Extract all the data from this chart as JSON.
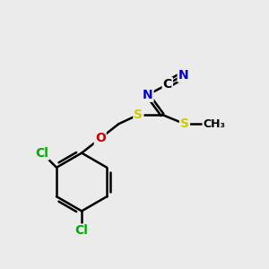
{
  "background_color": "#ebebeb",
  "atom_colors": {
    "S": "#cccc00",
    "N": "#0000cc",
    "O": "#cc0000",
    "Cl": "#00aa00",
    "C": "#000000"
  },
  "bond_lw": 1.8,
  "font_size": 10,
  "font_size_small": 9
}
